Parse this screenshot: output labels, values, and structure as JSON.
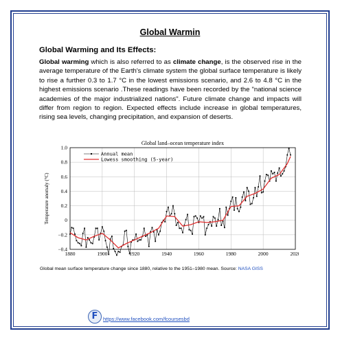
{
  "document": {
    "title": "Global Warmin",
    "heading": "Global Warming and Its Effects:",
    "paragraph": [
      {
        "t": "Global warming",
        "b": true
      },
      {
        "t": " which is also referred to as ",
        "b": false
      },
      {
        "t": "climate change",
        "b": true
      },
      {
        "t": ", is the observed rise in the average temperature of the Earth's climate system  the global surface temperature is likely to rise a further 0.3 to 1.7 °C  in the lowest emissions scenario, and 2.6 to 4.8 °C in the highest emissions scenario .These readings have been recorded by the \"national science academies of the major industrialized nations\". Future climate change and impacts will differ from region to region. Expected effects include increase in global temperatures, rising sea levels, changing precipitation, and expansion of deserts.",
        "b": false
      }
    ],
    "caption": "Global mean surface temperature change since 1880, relative to the 1951–1980 mean. Source: ",
    "caption_source": "NASA GISS",
    "footer_logo_letter": "F",
    "footer_link": "https://www.facebook.com/fcoursesbd"
  },
  "chart_data": {
    "type": "line",
    "title": "Global land–ocean temperature index",
    "ylabel": "Temperature anomaly (°C)",
    "xlabel": "",
    "xlim": [
      1880,
      2020
    ],
    "ylim": [
      -0.4,
      1.0
    ],
    "x_ticks": [
      1880,
      1900,
      1920,
      1940,
      1960,
      1980,
      2000,
      2020
    ],
    "y_ticks": [
      -0.4,
      -0.2,
      0,
      0.2,
      0.4,
      0.6,
      0.8,
      1.0
    ],
    "y_tick_labels": [
      "−0.4",
      "−0.2",
      "0",
      "0.2",
      "0.4",
      "0.6",
      "0.8",
      "1.0"
    ],
    "grid": true,
    "legend_position": "top-left",
    "series": [
      {
        "name": "Annual mean",
        "color": "#000000",
        "x": [
          1880,
          1881,
          1882,
          1883,
          1884,
          1885,
          1886,
          1887,
          1888,
          1889,
          1890,
          1891,
          1892,
          1893,
          1894,
          1895,
          1896,
          1897,
          1898,
          1899,
          1900,
          1901,
          1902,
          1903,
          1904,
          1905,
          1906,
          1907,
          1908,
          1909,
          1910,
          1911,
          1912,
          1913,
          1914,
          1915,
          1916,
          1917,
          1918,
          1919,
          1920,
          1921,
          1922,
          1923,
          1924,
          1925,
          1926,
          1927,
          1928,
          1929,
          1930,
          1931,
          1932,
          1933,
          1934,
          1935,
          1936,
          1937,
          1938,
          1939,
          1940,
          1941,
          1942,
          1943,
          1944,
          1945,
          1946,
          1947,
          1948,
          1949,
          1950,
          1951,
          1952,
          1953,
          1954,
          1955,
          1956,
          1957,
          1958,
          1959,
          1960,
          1961,
          1962,
          1963,
          1964,
          1965,
          1966,
          1967,
          1968,
          1969,
          1970,
          1971,
          1972,
          1973,
          1974,
          1975,
          1976,
          1977,
          1978,
          1979,
          1980,
          1981,
          1982,
          1983,
          1984,
          1985,
          1986,
          1987,
          1988,
          1989,
          1990,
          1991,
          1992,
          1993,
          1994,
          1995,
          1996,
          1997,
          1998,
          1999,
          2000,
          2001,
          2002,
          2003,
          2004,
          2005,
          2006,
          2007,
          2008,
          2009,
          2010,
          2011,
          2012,
          2013,
          2014,
          2015,
          2016,
          2017
        ],
        "values": [
          -0.19,
          -0.1,
          -0.11,
          -0.19,
          -0.28,
          -0.31,
          -0.32,
          -0.35,
          -0.18,
          -0.11,
          -0.37,
          -0.24,
          -0.27,
          -0.31,
          -0.32,
          -0.23,
          -0.11,
          -0.11,
          -0.27,
          -0.18,
          -0.09,
          -0.15,
          -0.28,
          -0.37,
          -0.47,
          -0.26,
          -0.22,
          -0.39,
          -0.43,
          -0.48,
          -0.43,
          -0.44,
          -0.36,
          -0.34,
          -0.15,
          -0.14,
          -0.36,
          -0.46,
          -0.3,
          -0.27,
          -0.27,
          -0.19,
          -0.29,
          -0.27,
          -0.27,
          -0.22,
          -0.11,
          -0.22,
          -0.2,
          -0.36,
          -0.16,
          -0.1,
          -0.16,
          -0.29,
          -0.13,
          -0.2,
          -0.15,
          -0.03,
          -0.0,
          -0.02,
          0.12,
          0.18,
          0.06,
          0.09,
          0.2,
          0.09,
          -0.07,
          -0.03,
          -0.11,
          -0.11,
          -0.17,
          -0.07,
          0.01,
          0.08,
          -0.13,
          -0.14,
          -0.19,
          0.05,
          0.06,
          0.03,
          -0.03,
          0.06,
          0.03,
          0.05,
          -0.2,
          -0.11,
          -0.06,
          -0.02,
          -0.08,
          0.05,
          0.03,
          -0.08,
          0.01,
          0.16,
          -0.07,
          -0.01,
          -0.1,
          0.18,
          0.07,
          0.16,
          0.26,
          0.32,
          0.14,
          0.31,
          0.16,
          0.12,
          0.18,
          0.32,
          0.39,
          0.27,
          0.45,
          0.4,
          0.22,
          0.23,
          0.31,
          0.45,
          0.33,
          0.46,
          0.61,
          0.38,
          0.39,
          0.54,
          0.63,
          0.62,
          0.54,
          0.68,
          0.64,
          0.66,
          0.54,
          0.65,
          0.72,
          0.61,
          0.64,
          0.68,
          0.74,
          0.9,
          0.99,
          0.9
        ]
      },
      {
        "name": "Lowess smoothing (5-year)",
        "color": "#e03030",
        "x": [
          1880,
          1885,
          1890,
          1895,
          1900,
          1905,
          1910,
          1915,
          1920,
          1925,
          1930,
          1935,
          1940,
          1945,
          1950,
          1955,
          1960,
          1965,
          1970,
          1975,
          1980,
          1985,
          1990,
          1995,
          2000,
          2005,
          2010,
          2015,
          2017
        ],
        "values": [
          -0.17,
          -0.24,
          -0.27,
          -0.22,
          -0.18,
          -0.27,
          -0.38,
          -0.32,
          -0.27,
          -0.22,
          -0.17,
          -0.11,
          0.06,
          0.05,
          -0.08,
          -0.06,
          -0.02,
          -0.03,
          -0.02,
          0.0,
          0.19,
          0.2,
          0.33,
          0.37,
          0.43,
          0.58,
          0.63,
          0.78,
          0.88
        ]
      }
    ]
  }
}
